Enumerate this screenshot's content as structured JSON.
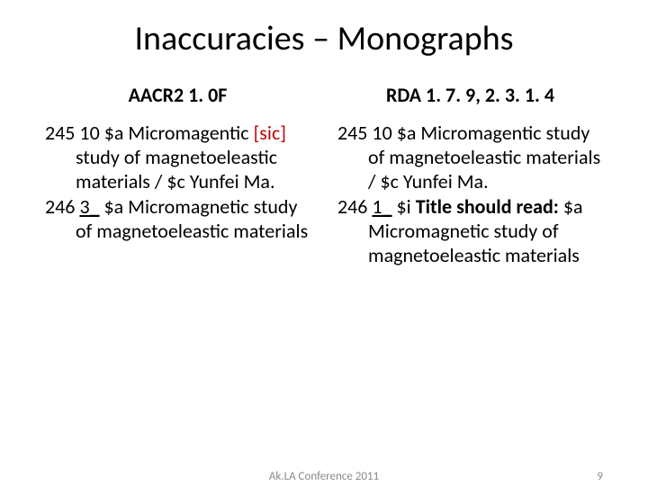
{
  "title": "Inaccuracies – Monographs",
  "left": {
    "heading": "AACR2  1. 0F",
    "p1_a": "245 10 $a Micromagentic ",
    "p1_sic": "[sic]",
    "p1_b": " study of magnetoeleastic materials / $c Yunfei Ma.",
    "p2_a": "246 ",
    "p2_u": "3_",
    "p2_b": "  $a Micromagnetic  study of  magnetoeleastic materials"
  },
  "right": {
    "heading": "RDA  1. 7. 9, 2. 3. 1. 4",
    "p1": "245 10 $a Micromagentic  study of  magnetoeleastic materials / $c Yunfei Ma.",
    "p2_a": "246 ",
    "p2_u": "1_",
    "p2_b": "  $i ",
    "p2_bold": "Title should read:",
    "p2_c": " $a Micromagnetic  study of magnetoeleastic  materials"
  },
  "footer_text": "Ak.LA Conference 2011",
  "page_number": "9",
  "colors": {
    "sic": "#c00000",
    "footer": "#8a8a8a",
    "text": "#000000",
    "bg": "#ffffff"
  },
  "fontsizes": {
    "title": 38,
    "heading": 22,
    "body": 22,
    "footer": 13
  }
}
